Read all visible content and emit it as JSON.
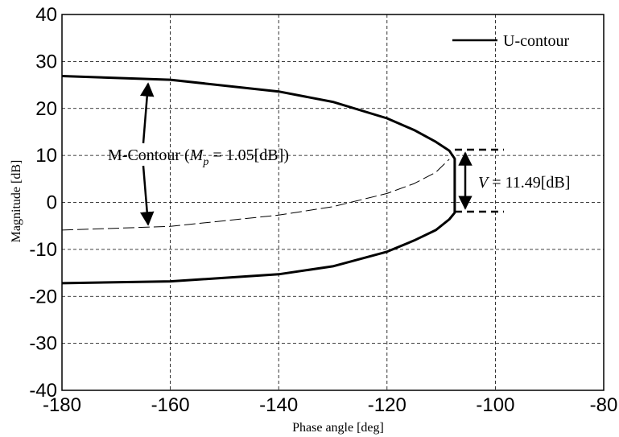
{
  "chart_data": {
    "type": "line",
    "xlabel": "Phase angle [deg]",
    "ylabel": "Magnitude [dB]",
    "xlim": [
      -180,
      -80
    ],
    "ylim": [
      -40,
      40
    ],
    "xticks": [
      -180,
      -160,
      -140,
      -120,
      -100,
      -80
    ],
    "yticks": [
      40,
      30,
      20,
      10,
      0,
      -10,
      -20,
      -30,
      -40
    ],
    "grid": true,
    "legend_position": "top-right",
    "series": [
      {
        "name": "U-contour",
        "style": "solid-thick",
        "x": [
          -180,
          -160,
          -140,
          -130,
          -120,
          -115,
          -111,
          -108.5,
          -107.5,
          -107.5,
          -108.5,
          -111,
          -115,
          -120,
          -130,
          -140,
          -160,
          -180
        ],
        "y": [
          26.9,
          26.1,
          23.6,
          21.4,
          17.9,
          15.4,
          12.9,
          11.0,
          9.3,
          -2.2,
          -3.6,
          -5.9,
          -8.1,
          -10.5,
          -13.6,
          -15.3,
          -16.8,
          -17.2
        ]
      },
      {
        "name": "",
        "style": "thin-dashed",
        "x": [
          -180,
          -160,
          -140,
          -130,
          -120,
          -115,
          -111,
          -108.5
        ],
        "y": [
          -5.9,
          -5.1,
          -2.7,
          -0.9,
          1.9,
          4.0,
          6.4,
          9.2
        ]
      }
    ],
    "annotations": {
      "m_contour": "M-Contour (",
      "m_symbol": "M",
      "m_subscript": "p",
      "m_value": " = 1.05[dB])",
      "v_symbol": "V",
      "v_value": " = 11.49[dB]"
    }
  }
}
